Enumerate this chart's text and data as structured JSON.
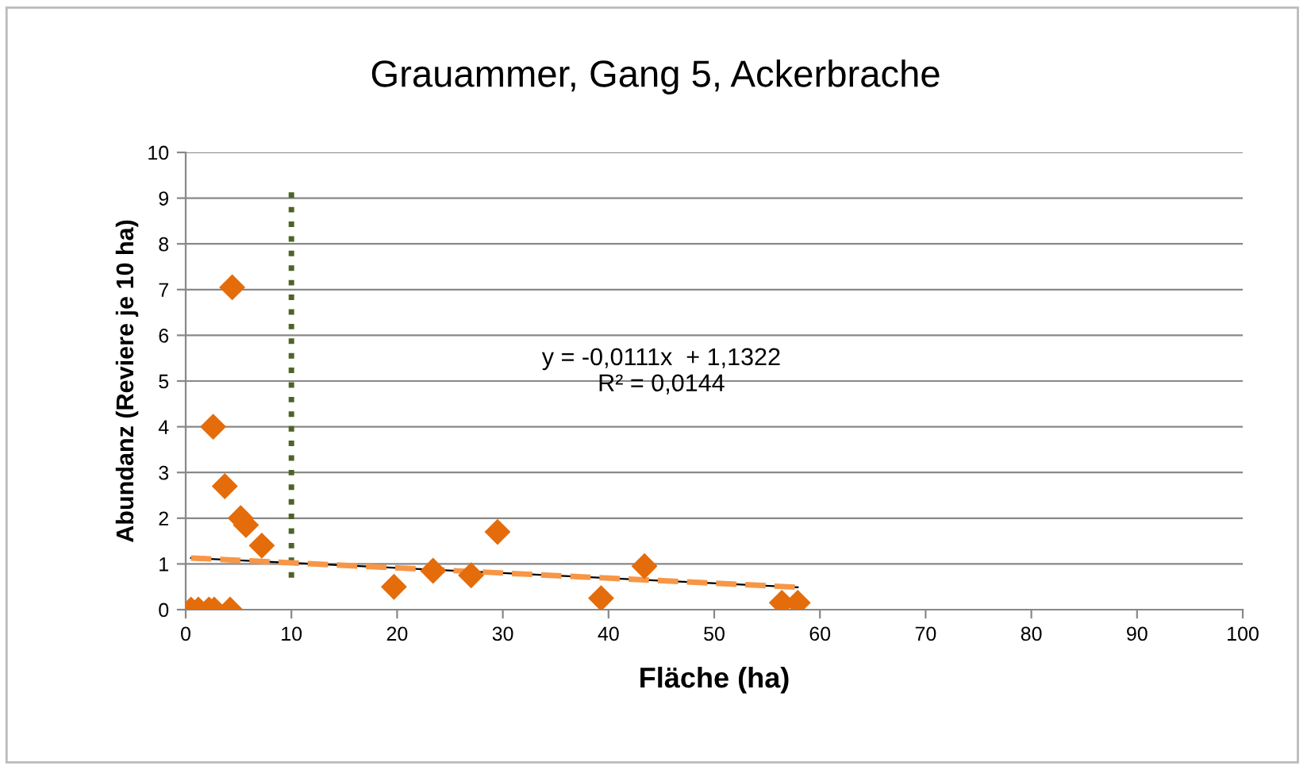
{
  "chart_data": {
    "type": "scatter",
    "title": "Grauammer, Gang 5, Ackerbrache",
    "xlabel": "Fläche (ha)",
    "ylabel": "Abundanz (Reviere je 10 ha)",
    "series": [
      {
        "color": "#e46c0a",
        "marker": "diamond",
        "x": [
          0.5,
          1.2,
          2.2,
          2.7,
          4.2,
          2.6,
          3.7,
          4.4,
          5.2,
          5.7,
          7.2,
          19.7,
          23.4,
          27.0,
          29.5,
          39.3,
          43.4,
          56.4,
          57.9
        ],
        "values": [
          0,
          0,
          0,
          0,
          0,
          4.0,
          2.7,
          7.05,
          2.0,
          1.85,
          1.4,
          0.5,
          0.85,
          0.75,
          1.7,
          0.25,
          0.95,
          0.15,
          0.15
        ]
      },
      {
        "type": "line",
        "color": "#f79646",
        "line_style": "dashed",
        "x": [
          0.5,
          57.9
        ],
        "values": [
          1.13,
          0.49
        ]
      }
    ],
    "ref_lines": [
      {
        "axis": "x",
        "value": 10,
        "color": "#4f6228",
        "line_style": "dotted"
      }
    ],
    "annotations": [
      "y = -0,0111x  + 1,1322\nR² = 0,0144"
    ],
    "xlim": [
      0,
      100
    ],
    "xticks": [
      0,
      10,
      20,
      30,
      40,
      50,
      60,
      70,
      80,
      90,
      100
    ],
    "ylim": [
      0,
      10
    ],
    "yticks": [
      0,
      1,
      2,
      3,
      4,
      5,
      6,
      7,
      8,
      9,
      10
    ],
    "grid": "y",
    "legend": false
  }
}
